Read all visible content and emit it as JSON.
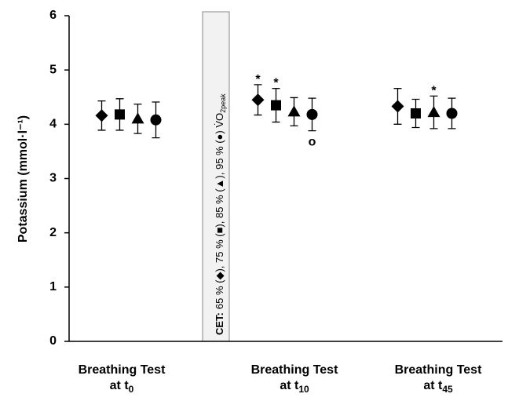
{
  "chart_data": {
    "type": "errorbar",
    "y_label": "Potassium (mmol·l⁻¹)",
    "categories": [
      {
        "line1": "Breathing Test",
        "line2": "at t",
        "sub": "0"
      },
      {
        "line1": "Breathing Test",
        "line2": "at t",
        "sub": "10"
      },
      {
        "line1": "Breathing Test",
        "line2": "at t",
        "sub": "45"
      }
    ],
    "annotation": {
      "label": "CET:",
      "text": "65 % (◆), 75 % (■), 85 % (▲), 95 % (●) V̇O",
      "sub": "2peak"
    },
    "ylim": [
      0,
      6
    ],
    "yticks": [
      0,
      1,
      2,
      3,
      4,
      5,
      6
    ],
    "series": [
      {
        "marker": "diamond",
        "color": "#000000",
        "values": [
          4.16,
          4.45,
          4.33
        ],
        "errors": [
          0.27,
          0.28,
          0.33
        ],
        "marks": [
          null,
          "*",
          null
        ]
      },
      {
        "marker": "square",
        "color": "#000000",
        "values": [
          4.18,
          4.35,
          4.2
        ],
        "errors": [
          0.29,
          0.31,
          0.26
        ],
        "marks": [
          null,
          "*",
          null
        ]
      },
      {
        "marker": "triangle",
        "color": "#000000",
        "values": [
          4.1,
          4.23,
          4.22
        ],
        "errors": [
          0.27,
          0.26,
          0.3
        ],
        "marks": [
          null,
          null,
          "*"
        ]
      },
      {
        "marker": "circle",
        "color": "#000000",
        "values": [
          4.08,
          4.18,
          4.2
        ],
        "errors": [
          0.33,
          0.3,
          0.28
        ],
        "marks": [
          null,
          "o",
          null
        ]
      }
    ]
  }
}
